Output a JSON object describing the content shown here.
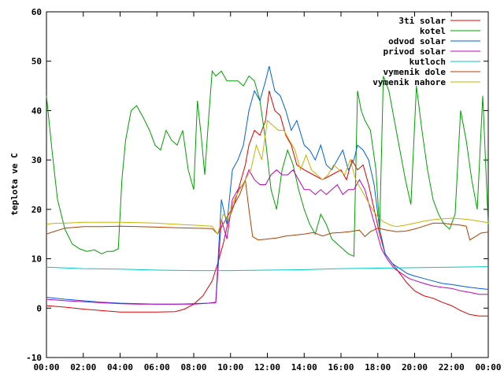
{
  "chart_data": {
    "type": "line",
    "title": "",
    "xlabel": "",
    "ylabel": "teplota ve C",
    "xlim": [
      0,
      24
    ],
    "ylim": [
      -10,
      60
    ],
    "x_tick_labels": [
      "00:00",
      "02:00",
      "04:00",
      "06:00",
      "08:00",
      "10:00",
      "12:00",
      "14:00",
      "16:00",
      "18:00",
      "20:00",
      "22:00",
      "00:00"
    ],
    "y_tick_labels": [
      "-10",
      "0",
      "10",
      "20",
      "30",
      "40",
      "50",
      "60"
    ],
    "grid": false,
    "legend_position": "top-right",
    "series": [
      {
        "name": "3ti solar",
        "color": "#e00000",
        "x": [
          0,
          1,
          2,
          3,
          4,
          5,
          6,
          7,
          7.5,
          8,
          8.5,
          9,
          9.3,
          9.6,
          9.9,
          10.2,
          10.5,
          10.8,
          11,
          11.3,
          11.6,
          11.9,
          12.1,
          12.4,
          12.7,
          13,
          13.3,
          13.6,
          14,
          14.5,
          15,
          15.5,
          16,
          16.3,
          16.6,
          16.9,
          17.2,
          17.5,
          17.8,
          18.1,
          18.4,
          18.8,
          19.2,
          19.6,
          20,
          20.5,
          21,
          21.5,
          22,
          22.5,
          23,
          23.5,
          24
        ],
        "y": [
          0.5,
          0.2,
          -0.2,
          -0.5,
          -0.8,
          -0.8,
          -0.8,
          -0.7,
          -0.2,
          0.8,
          2.5,
          5.5,
          9,
          13,
          18,
          21,
          25,
          29,
          33,
          36,
          35,
          38,
          44,
          40,
          39,
          35,
          33,
          29,
          28,
          27,
          26,
          27,
          28,
          26,
          30,
          28,
          29,
          25,
          20,
          15,
          11,
          9,
          7,
          5,
          3.5,
          2.5,
          2,
          1.2,
          0.5,
          -0.5,
          -1.3,
          -1.6,
          -1.6
        ]
      },
      {
        "name": "kotel",
        "color": "#00a000",
        "x": [
          0,
          0.3,
          0.6,
          1,
          1.4,
          1.8,
          2.2,
          2.6,
          3,
          3.3,
          3.6,
          3.9,
          4.1,
          4.3,
          4.6,
          4.9,
          5.2,
          5.6,
          5.9,
          6.2,
          6.5,
          6.8,
          7.1,
          7.4,
          7.7,
          8,
          8.2,
          8.4,
          8.6,
          8.8,
          9,
          9.2,
          9.5,
          9.8,
          10.1,
          10.4,
          10.7,
          11,
          11.3,
          11.6,
          11.9,
          12.2,
          12.5,
          12.8,
          13.1,
          13.4,
          13.7,
          14,
          14.3,
          14.6,
          14.9,
          15.2,
          15.5,
          15.8,
          16.1,
          16.4,
          16.7,
          16.9,
          17.1,
          17.3,
          17.6,
          17.9,
          18.1,
          18.3,
          18.6,
          18.9,
          19.2,
          19.5,
          19.8,
          20.1,
          20.4,
          20.7,
          21,
          21.3,
          21.6,
          21.9,
          22.2,
          22.5,
          22.8,
          23.1,
          23.4,
          23.7,
          24
        ],
        "y": [
          43,
          32,
          22,
          16,
          13,
          12,
          11.5,
          11.8,
          11,
          11.5,
          11.5,
          12,
          26,
          34,
          40,
          41,
          39,
          36,
          33,
          32,
          36,
          34,
          33,
          36,
          28,
          24,
          42,
          35,
          27,
          38,
          48,
          47,
          48,
          46,
          46,
          46,
          45,
          47,
          46,
          42,
          34,
          24,
          20,
          28,
          32,
          29,
          24,
          20,
          17,
          15,
          19,
          17,
          14,
          13,
          12,
          11,
          10.5,
          44,
          40,
          38,
          36,
          28,
          16,
          47,
          44,
          38,
          32,
          26,
          21,
          45,
          36,
          28,
          22,
          19,
          17,
          16,
          19,
          40,
          34,
          26,
          20,
          43,
          17
        ]
      },
      {
        "name": "odvod solar",
        "color": "#0060e0",
        "x": [
          0,
          1,
          2,
          3,
          4,
          5,
          6,
          7,
          8,
          8.8,
          9.2,
          9.5,
          9.8,
          10.1,
          10.4,
          10.7,
          11,
          11.3,
          11.6,
          11.9,
          12.1,
          12.4,
          12.7,
          13,
          13.3,
          13.6,
          14,
          14.3,
          14.6,
          14.9,
          15.2,
          15.5,
          15.8,
          16.1,
          16.4,
          16.7,
          16.9,
          17.2,
          17.5,
          17.8,
          18.1,
          18.4,
          18.8,
          19.2,
          19.6,
          20,
          20.5,
          21,
          21.5,
          22,
          22.5,
          23,
          23.5,
          24
        ],
        "y": [
          2.2,
          1.8,
          1.5,
          1.2,
          1.0,
          0.9,
          0.8,
          0.8,
          0.9,
          1.0,
          1.2,
          22,
          17,
          28,
          30,
          33,
          40,
          44,
          42,
          46,
          49,
          44,
          43,
          40,
          36,
          38,
          33,
          32,
          30,
          33,
          29,
          28,
          30,
          32,
          28,
          30,
          33,
          32,
          30,
          25,
          16,
          11,
          9,
          8,
          7,
          6.5,
          6,
          5.5,
          5,
          4.8,
          4.5,
          4.2,
          4.0,
          3.8
        ]
      },
      {
        "name": "privod solar",
        "color": "#c000c0",
        "x": [
          0,
          1,
          2,
          3,
          4,
          5,
          6,
          7,
          8,
          8.8,
          9.2,
          9.5,
          9.8,
          10.1,
          10.4,
          10.7,
          11,
          11.3,
          11.6,
          11.9,
          12.2,
          12.5,
          12.8,
          13.1,
          13.4,
          13.7,
          14,
          14.3,
          14.6,
          14.9,
          15.2,
          15.5,
          15.8,
          16.1,
          16.4,
          16.7,
          17,
          17.3,
          17.6,
          17.9,
          18.2,
          18.5,
          18.9,
          19.3,
          19.7,
          20.1,
          20.5,
          21,
          21.5,
          22,
          22.5,
          23,
          23.5,
          24
        ],
        "y": [
          1.8,
          1.5,
          1.3,
          1.1,
          0.9,
          0.8,
          0.8,
          0.8,
          0.8,
          1.0,
          1.1,
          18,
          14,
          22,
          24,
          25,
          28,
          26,
          25,
          25,
          27,
          28,
          27,
          27,
          28,
          26,
          24,
          24,
          23,
          24,
          23,
          24,
          25,
          23,
          24,
          24,
          26,
          24,
          20,
          16,
          12,
          10,
          8,
          7,
          6,
          5.5,
          5,
          4.5,
          4.2,
          4,
          3.5,
          3.2,
          2.8,
          2.8
        ]
      },
      {
        "name": "kutloch",
        "color": "#00c8c8",
        "x": [
          0,
          2,
          4,
          6,
          8,
          10,
          12,
          14,
          16,
          18,
          20,
          22,
          24
        ],
        "y": [
          8.3,
          8.0,
          7.9,
          7.7,
          7.6,
          7.6,
          7.7,
          7.8,
          8.0,
          8.1,
          8.2,
          8.3,
          8.4
        ]
      },
      {
        "name": "vymenik dole",
        "color": "#b04000",
        "x": [
          0,
          0.4,
          1,
          2,
          3,
          4,
          5,
          6,
          7,
          8,
          9,
          9.3,
          9.6,
          9.9,
          10.2,
          10.5,
          10.8,
          11,
          11.2,
          11.5,
          12,
          12.5,
          13,
          13.5,
          14,
          14.5,
          15,
          15.5,
          16,
          16.5,
          17,
          17.3,
          17.6,
          18,
          18.5,
          19,
          19.5,
          20,
          20.5,
          21,
          21.5,
          22,
          22.5,
          22.8,
          23,
          23.3,
          23.6,
          24
        ],
        "y": [
          15,
          15.5,
          16.2,
          16.5,
          16.5,
          16.6,
          16.5,
          16.4,
          16.3,
          16.2,
          16.1,
          15,
          17,
          19,
          21,
          23,
          26,
          20,
          14.5,
          13.8,
          14,
          14.2,
          14.6,
          14.8,
          15,
          15.3,
          14.6,
          15.2,
          15.3,
          15.5,
          15.8,
          14.5,
          15.5,
          16.2,
          15.8,
          15.5,
          15.6,
          16,
          16.6,
          17.2,
          17.2,
          17,
          16.8,
          16.6,
          13.8,
          14.5,
          15.2,
          15.4
        ]
      },
      {
        "name": "vymenik nahore",
        "color": "#c8b400",
        "x": [
          0,
          0.5,
          1,
          2,
          3,
          4,
          5,
          6,
          7,
          8,
          9,
          9.3,
          9.6,
          9.9,
          10.2,
          10.5,
          10.8,
          11.1,
          11.4,
          11.7,
          12,
          12.3,
          12.6,
          12.9,
          13.2,
          13.5,
          13.8,
          14.1,
          14.4,
          14.7,
          15,
          15.3,
          15.6,
          15.9,
          16.2,
          16.5,
          16.8,
          17.1,
          17.4,
          17.7,
          18,
          18.3,
          18.7,
          19,
          19.5,
          20,
          20.5,
          21,
          21.5,
          22,
          22.5,
          23,
          23.5,
          24
        ],
        "y": [
          17,
          17.2,
          17.2,
          17.4,
          17.4,
          17.4,
          17.3,
          17.2,
          17,
          16.8,
          16.6,
          15,
          19,
          18,
          22,
          24,
          26,
          28,
          33,
          30,
          38,
          37,
          36,
          36,
          34,
          32,
          28,
          31,
          28,
          27,
          26,
          27,
          29,
          28,
          27,
          30,
          26,
          24,
          22,
          20,
          18.5,
          17.5,
          16.8,
          16.5,
          16.8,
          17.2,
          17.6,
          17.9,
          18.1,
          18.2,
          18.1,
          17.9,
          17.6,
          17.3
        ]
      }
    ]
  }
}
